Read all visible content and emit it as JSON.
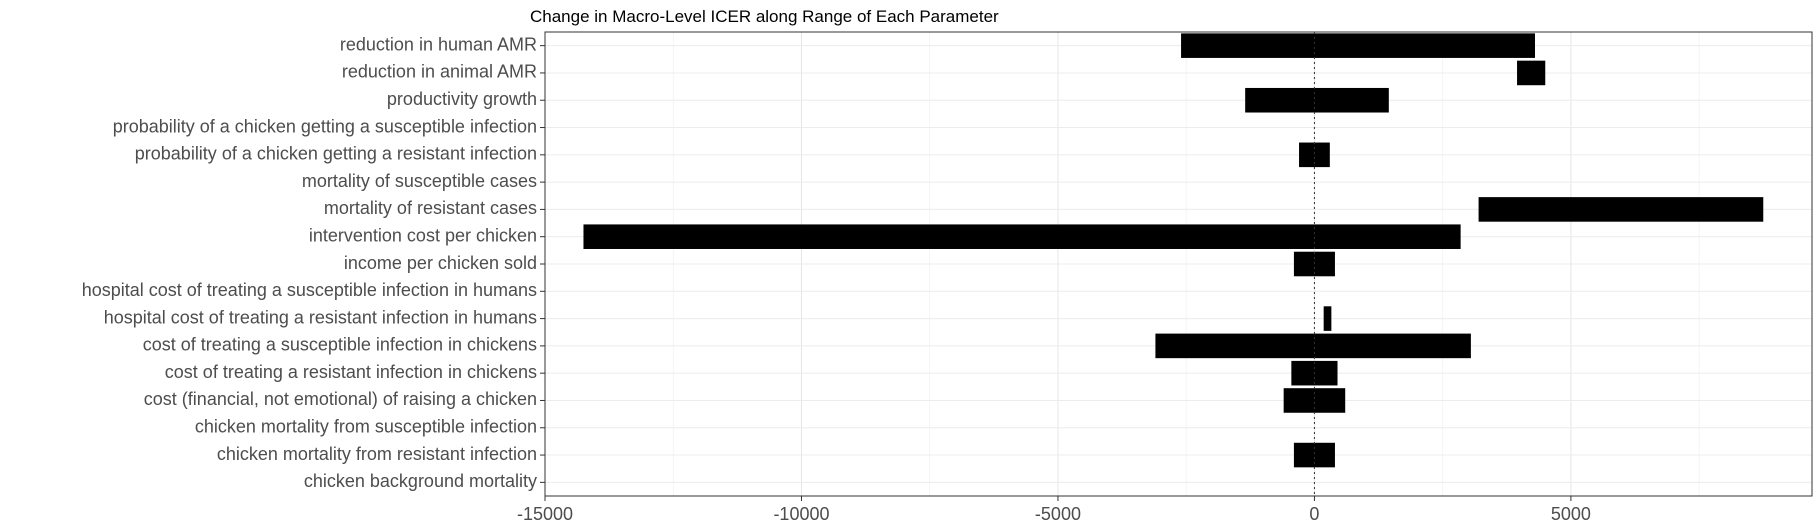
{
  "chart_data": {
    "type": "bar",
    "orientation": "horizontal",
    "title": "Change in Macro-Level ICER along Range of Each Parameter",
    "xlabel": "",
    "ylabel": "",
    "xlim": [
      -15000,
      9700
    ],
    "x_ticks": [
      -15000,
      -10000,
      -5000,
      0,
      5000
    ],
    "x_tick_labels": [
      "-15000",
      "-10000",
      "-5000",
      "0",
      "5000"
    ],
    "grid": true,
    "reference_line": 0,
    "bar_color": "#000000",
    "categories": [
      "reduction in human AMR",
      "reduction in animal AMR",
      "productivity growth",
      "probability of a chicken getting a susceptible infection",
      "probability of a chicken getting a resistant infection",
      "mortality of susceptible cases",
      "mortality of resistant cases",
      "intervention cost per chicken",
      "income per chicken sold",
      "hospital cost of treating a susceptible infection in humans",
      "hospital cost of treating a resistant infection in humans",
      "cost of treating a susceptible infection in chickens",
      "cost of treating a resistant infection in chickens",
      "cost (financial, not emotional) of raising a chicken",
      "chicken mortality from susceptible infection",
      "chicken mortality from resistant infection",
      "chicken background mortality"
    ],
    "ranges": [
      [
        -2600,
        4300
      ],
      [
        3950,
        4500
      ],
      [
        -1350,
        1450
      ],
      null,
      [
        -300,
        300
      ],
      null,
      [
        3200,
        8750
      ],
      [
        -14250,
        2850
      ],
      [
        -400,
        400
      ],
      null,
      [
        180,
        330
      ],
      [
        -3100,
        3050
      ],
      [
        -450,
        450
      ],
      [
        -600,
        600
      ],
      null,
      [
        -400,
        400
      ],
      null
    ]
  }
}
